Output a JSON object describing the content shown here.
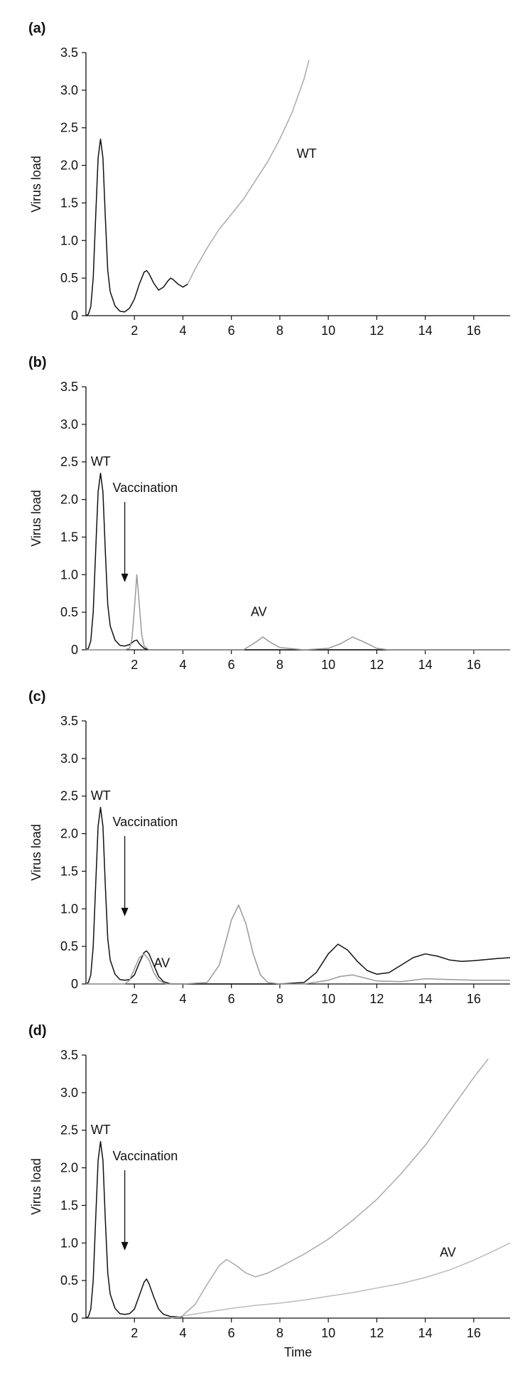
{
  "chart_data": [
    {
      "type": "line",
      "panel_label": "(a)",
      "ylabel": "Virus load",
      "xlabel": "",
      "xlim": [
        0,
        17.5
      ],
      "ylim": [
        0,
        3.5
      ],
      "x_ticks": [
        "2",
        "4",
        "6",
        "8",
        "10",
        "12",
        "14",
        "16"
      ],
      "y_ticks": [
        "0",
        "0.5",
        "1.0",
        "1.5",
        "2.0",
        "2.5",
        "3.0",
        "3.5"
      ],
      "annotations": [
        {
          "text": "WT",
          "x": 8.7,
          "y": 2.1
        }
      ],
      "series": [
        {
          "name": "WT",
          "color": "#111111",
          "x": [
            0,
            0.1,
            0.2,
            0.3,
            0.4,
            0.5,
            0.6,
            0.7,
            0.8,
            0.9,
            1.0,
            1.2,
            1.4,
            1.6,
            1.8,
            2.0,
            2.2,
            2.4,
            2.5,
            2.6,
            2.8,
            3.0,
            3.2,
            3.4,
            3.5,
            3.6,
            3.8,
            4.0,
            4.2
          ],
          "y": [
            0.0,
            0.02,
            0.12,
            0.5,
            1.3,
            2.1,
            2.35,
            2.1,
            1.3,
            0.6,
            0.32,
            0.13,
            0.06,
            0.05,
            0.1,
            0.22,
            0.42,
            0.58,
            0.6,
            0.56,
            0.43,
            0.34,
            0.38,
            0.47,
            0.5,
            0.48,
            0.42,
            0.38,
            0.42
          ]
        },
        {
          "name": "WT",
          "color": "#aaaaaa",
          "x": [
            4.2,
            4.5,
            5.0,
            5.5,
            6.0,
            6.5,
            7.0,
            7.5,
            8.0,
            8.5,
            9.0,
            9.2
          ],
          "y": [
            0.42,
            0.62,
            0.9,
            1.15,
            1.35,
            1.55,
            1.8,
            2.05,
            2.35,
            2.7,
            3.15,
            3.4
          ]
        }
      ]
    },
    {
      "type": "line",
      "panel_label": "(b)",
      "ylabel": "Virus load",
      "xlabel": "",
      "xlim": [
        0,
        17.5
      ],
      "ylim": [
        0,
        3.5
      ],
      "x_ticks": [
        "2",
        "4",
        "6",
        "8",
        "10",
        "12",
        "14",
        "16"
      ],
      "y_ticks": [
        "0",
        "0.5",
        "1.0",
        "1.5",
        "2.0",
        "2.5",
        "3.0",
        "3.5"
      ],
      "annotations": [
        {
          "text": "WT",
          "x": 0.2,
          "y": 2.45
        },
        {
          "text": "Vaccination",
          "x": 1.1,
          "y": 2.1,
          "arrow_to": [
            1.6,
            0.9
          ]
        },
        {
          "text": "AV",
          "x": 6.8,
          "y": 0.45
        }
      ],
      "series": [
        {
          "name": "WT",
          "color": "#111111",
          "x": [
            0,
            0.1,
            0.2,
            0.3,
            0.4,
            0.5,
            0.6,
            0.7,
            0.8,
            0.9,
            1.0,
            1.2,
            1.4,
            1.6,
            1.8,
            2.0,
            2.1,
            2.2,
            2.4,
            2.6,
            2.8,
            3.0,
            4.0,
            6.0,
            8.0,
            10.0,
            12.0,
            17.5
          ],
          "y": [
            0.0,
            0.02,
            0.12,
            0.5,
            1.3,
            2.1,
            2.35,
            2.1,
            1.3,
            0.6,
            0.32,
            0.13,
            0.06,
            0.05,
            0.07,
            0.12,
            0.13,
            0.08,
            0.02,
            0.0,
            0.0,
            0.0,
            0.0,
            0.0,
            0.0,
            0.0,
            0.0,
            0.0
          ]
        },
        {
          "name": "AV",
          "color": "#999999",
          "x": [
            0,
            1.6,
            1.8,
            1.9,
            2.0,
            2.1,
            2.2,
            2.3,
            2.4,
            2.6,
            3.0,
            5.0,
            6.5,
            7.0,
            7.3,
            7.6,
            8.0,
            9.0,
            10.0,
            10.5,
            11.0,
            11.5,
            12.0,
            12.5,
            14.0,
            17.5
          ],
          "y": [
            0.0,
            0.0,
            0.02,
            0.15,
            0.55,
            1.0,
            0.6,
            0.2,
            0.05,
            0.0,
            0.0,
            0.0,
            0.0,
            0.1,
            0.17,
            0.1,
            0.03,
            0.0,
            0.02,
            0.08,
            0.17,
            0.1,
            0.02,
            0.0,
            0.0,
            0.0
          ]
        }
      ]
    },
    {
      "type": "line",
      "panel_label": "(c)",
      "ylabel": "Virus load",
      "xlabel": "",
      "xlim": [
        0,
        17.5
      ],
      "ylim": [
        0,
        3.5
      ],
      "x_ticks": [
        "2",
        "4",
        "6",
        "8",
        "10",
        "12",
        "14",
        "16"
      ],
      "y_ticks": [
        "0",
        "0.5",
        "1.0",
        "1.5",
        "2.0",
        "2.5",
        "3.0",
        "3.5"
      ],
      "annotations": [
        {
          "text": "WT",
          "x": 0.2,
          "y": 2.45
        },
        {
          "text": "Vaccination",
          "x": 1.1,
          "y": 2.1,
          "arrow_to": [
            1.6,
            0.9
          ]
        },
        {
          "text": "AV",
          "x": 2.8,
          "y": 0.22
        }
      ],
      "series": [
        {
          "name": "WT",
          "color": "#111111",
          "x": [
            0,
            0.1,
            0.2,
            0.3,
            0.4,
            0.5,
            0.6,
            0.7,
            0.8,
            0.9,
            1.0,
            1.2,
            1.4,
            1.6,
            1.8,
            2.0,
            2.2,
            2.4,
            2.5,
            2.6,
            2.8,
            3.0,
            3.2,
            3.5,
            4.0,
            6.0,
            8.0,
            9.0,
            9.5,
            10.0,
            10.4,
            10.8,
            11.2,
            11.6,
            12.0,
            12.5,
            13.0,
            13.5,
            14.0,
            14.5,
            15.0,
            15.5,
            16.0,
            17.0,
            17.5
          ],
          "y": [
            0.0,
            0.02,
            0.12,
            0.5,
            1.3,
            2.1,
            2.35,
            2.1,
            1.3,
            0.6,
            0.32,
            0.13,
            0.06,
            0.05,
            0.06,
            0.12,
            0.28,
            0.42,
            0.44,
            0.4,
            0.25,
            0.1,
            0.03,
            0.0,
            0.0,
            0.0,
            0.0,
            0.02,
            0.15,
            0.4,
            0.53,
            0.45,
            0.3,
            0.18,
            0.13,
            0.15,
            0.25,
            0.35,
            0.4,
            0.37,
            0.32,
            0.3,
            0.31,
            0.34,
            0.35
          ]
        },
        {
          "name": "AV",
          "color": "#999999",
          "x": [
            0,
            1.6,
            1.8,
            2.0,
            2.2,
            2.4,
            2.6,
            2.8,
            3.0,
            3.3,
            4.0,
            5.0,
            5.5,
            5.8,
            6.0,
            6.3,
            6.6,
            6.9,
            7.2,
            7.5,
            8.0,
            9.0,
            10.0,
            10.5,
            11.0,
            11.5,
            12.0,
            13.0,
            14.0,
            15.0,
            16.0,
            17.5
          ],
          "y": [
            0.0,
            0.0,
            0.05,
            0.2,
            0.35,
            0.4,
            0.32,
            0.15,
            0.05,
            0.0,
            0.0,
            0.02,
            0.25,
            0.6,
            0.85,
            1.05,
            0.8,
            0.4,
            0.12,
            0.02,
            0.0,
            0.0,
            0.05,
            0.1,
            0.12,
            0.08,
            0.04,
            0.03,
            0.07,
            0.06,
            0.05,
            0.05
          ]
        }
      ]
    },
    {
      "type": "line",
      "panel_label": "(d)",
      "ylabel": "Virus load",
      "xlabel": "Time",
      "xlim": [
        0,
        17.5
      ],
      "ylim": [
        0,
        3.5
      ],
      "x_ticks": [
        "2",
        "4",
        "6",
        "8",
        "10",
        "12",
        "14",
        "16"
      ],
      "y_ticks": [
        "0",
        "0.5",
        "1.0",
        "1.5",
        "2.0",
        "2.5",
        "3.0",
        "3.5"
      ],
      "annotations": [
        {
          "text": "WT",
          "x": 0.2,
          "y": 2.45
        },
        {
          "text": "Vaccination",
          "x": 1.1,
          "y": 2.1,
          "arrow_to": [
            1.6,
            0.9
          ]
        },
        {
          "text": "AV",
          "x": 14.6,
          "y": 0.82
        }
      ],
      "series": [
        {
          "name": "WT",
          "color": "#111111",
          "x": [
            0,
            0.1,
            0.2,
            0.3,
            0.4,
            0.5,
            0.6,
            0.7,
            0.8,
            0.9,
            1.0,
            1.2,
            1.4,
            1.6,
            1.8,
            2.0,
            2.2,
            2.4,
            2.5,
            2.6,
            2.8,
            3.0,
            3.2,
            3.5,
            4.0
          ],
          "y": [
            0.0,
            0.02,
            0.12,
            0.5,
            1.3,
            2.1,
            2.35,
            2.1,
            1.3,
            0.6,
            0.32,
            0.13,
            0.06,
            0.05,
            0.06,
            0.12,
            0.3,
            0.48,
            0.52,
            0.46,
            0.28,
            0.12,
            0.05,
            0.02,
            0.02
          ]
        },
        {
          "name": "AV",
          "color": "#aaaaaa",
          "x": [
            4.0,
            4.5,
            5.0,
            5.5,
            5.8,
            6.2,
            6.6,
            7.0,
            7.5,
            8.0,
            9.0,
            10.0,
            11.0,
            12.0,
            13.0,
            14.0,
            15.0,
            16.0,
            16.6
          ],
          "y": [
            0.04,
            0.18,
            0.45,
            0.7,
            0.78,
            0.7,
            0.6,
            0.55,
            0.6,
            0.68,
            0.85,
            1.05,
            1.3,
            1.58,
            1.92,
            2.3,
            2.75,
            3.2,
            3.45
          ]
        },
        {
          "name": "AV",
          "color": "#bbbbbb",
          "x": [
            3.5,
            4.0,
            5.0,
            6.0,
            7.0,
            8.0,
            9.0,
            10.0,
            11.0,
            12.0,
            13.0,
            14.0,
            15.0,
            16.0,
            17.0,
            17.5
          ],
          "y": [
            0.0,
            0.03,
            0.08,
            0.13,
            0.17,
            0.2,
            0.24,
            0.29,
            0.34,
            0.4,
            0.46,
            0.54,
            0.64,
            0.77,
            0.92,
            1.0
          ]
        }
      ]
    }
  ]
}
